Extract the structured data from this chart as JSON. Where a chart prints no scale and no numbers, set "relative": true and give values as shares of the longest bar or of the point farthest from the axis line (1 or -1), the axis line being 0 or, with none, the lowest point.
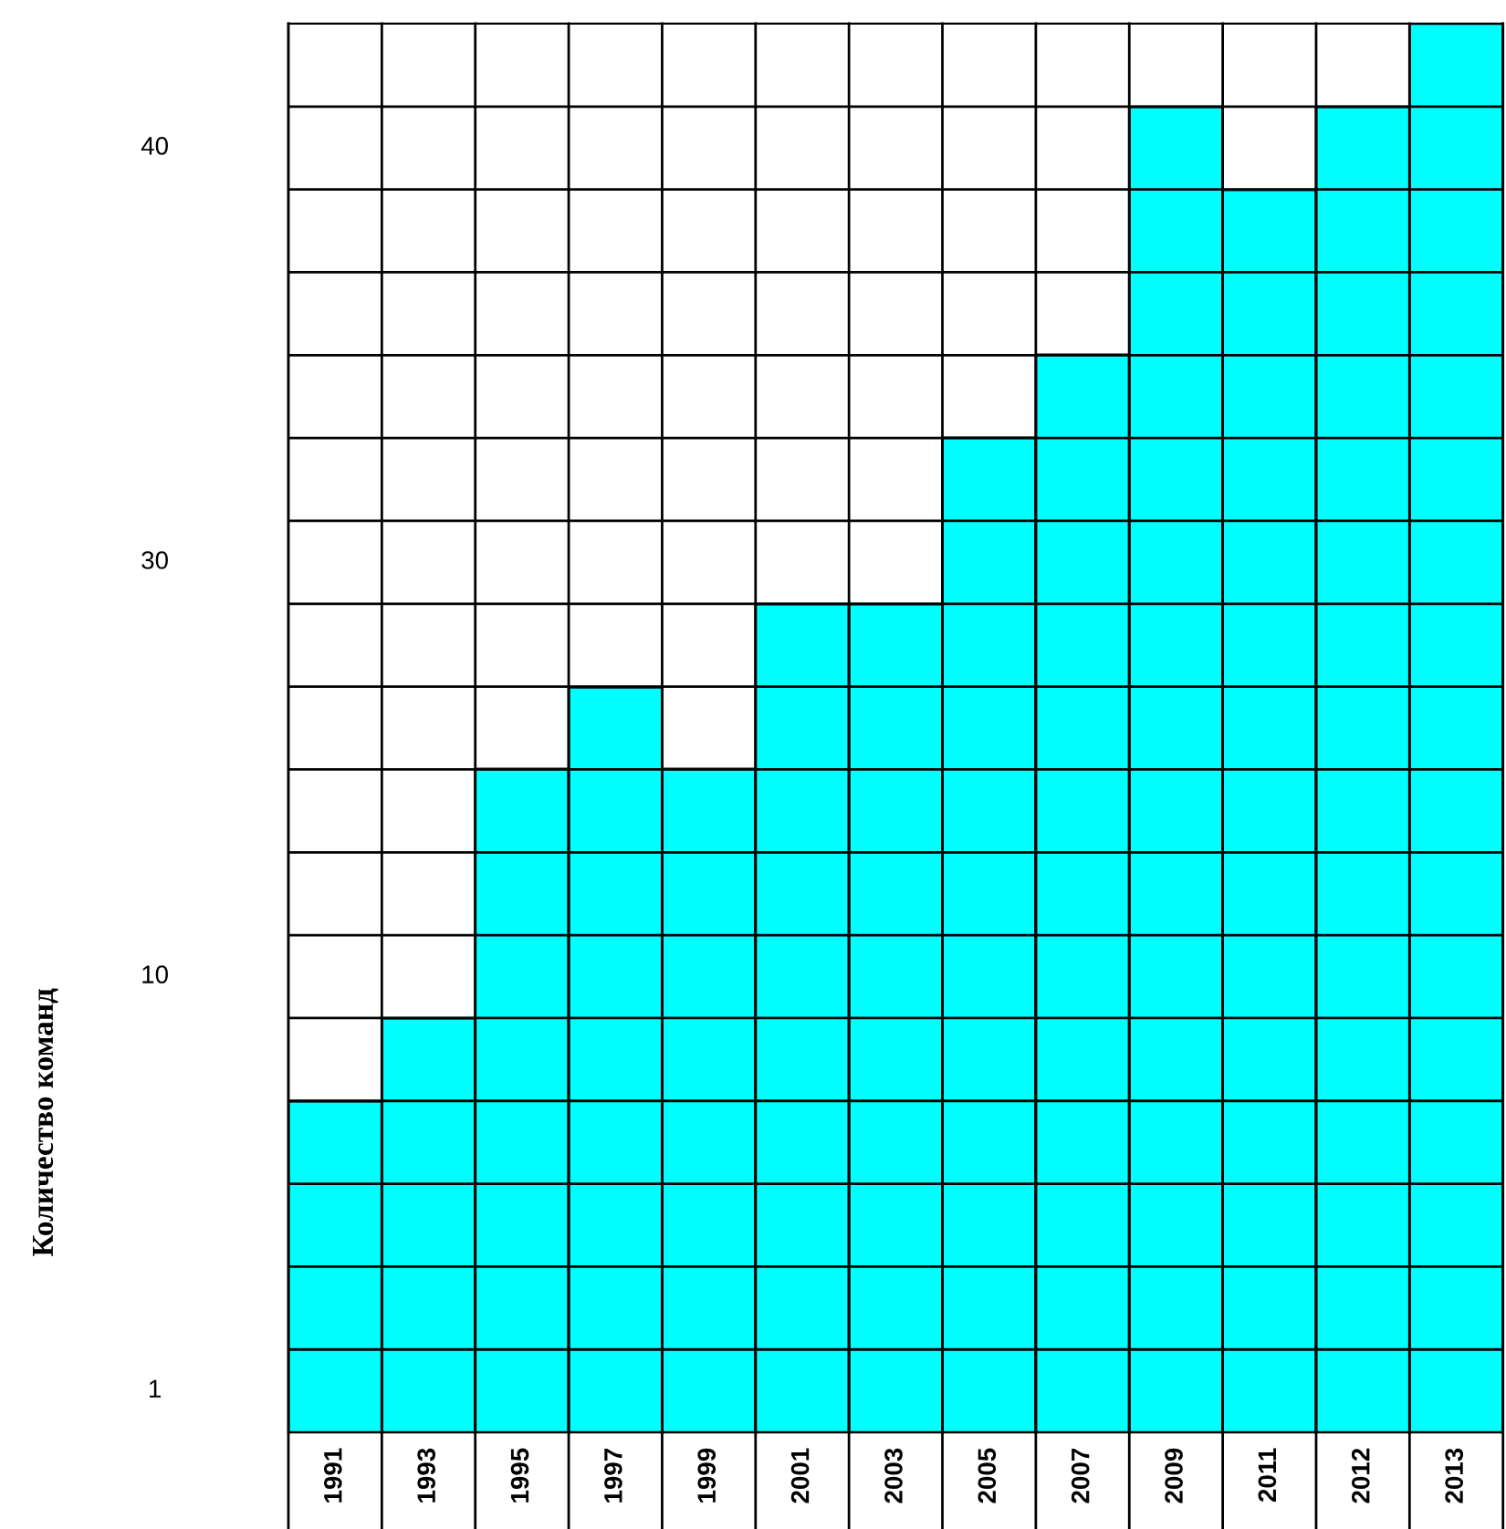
{
  "chart_data": {
    "type": "bar",
    "relative": true,
    "categories": [
      "1991",
      "1993",
      "1995",
      "1997",
      "1999",
      "2001",
      "2003",
      "2005",
      "2007",
      "2009",
      "2011",
      "2012",
      "2013"
    ],
    "values": [
      0.235,
      0.294,
      0.471,
      0.529,
      0.471,
      0.588,
      0.588,
      0.706,
      0.765,
      0.941,
      0.882,
      0.941,
      1
    ],
    "color": "#00ffff",
    "annotations": [
      "1",
      "10",
      "30",
      "40",
      "Количество команд"
    ],
    "grid": true
  }
}
